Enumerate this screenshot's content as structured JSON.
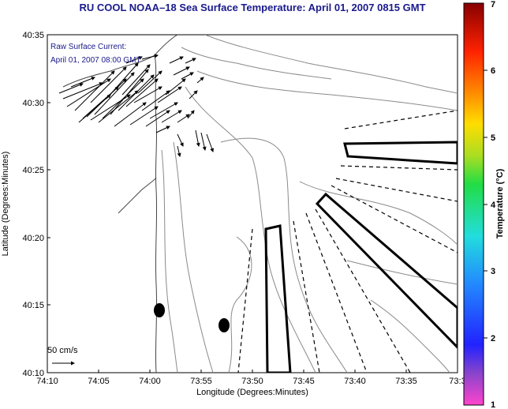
{
  "title": "RU COOL  NOAA–18  Sea Surface Temperature:  April 01, 2007 0815 GMT",
  "current_label_1": "Raw Surface Current:",
  "current_label_2": "April 01, 2007 08:00 GMT",
  "scale_label": "50 cm/s",
  "xlabel": "Longitude (Degrees:Minutes)",
  "ylabel": "Latitude (Degrees:Minutes)",
  "colorbar_label": "Temperature (°C)",
  "x_ticks": [
    "74:10",
    "74:05",
    "74:00",
    "73:55",
    "73:50",
    "73:45",
    "73:40",
    "73:35",
    "73:3"
  ],
  "y_ticks": [
    "40:35",
    "40:30",
    "40:25",
    "40:20",
    "40:15",
    "40:10"
  ],
  "cb_ticks": [
    "7",
    "6",
    "5",
    "4",
    "3",
    "2",
    "1"
  ],
  "colors": {
    "title": "#1a1a8c",
    "land_line": "#555555",
    "contour": "#888888",
    "zone": "#000000"
  }
}
